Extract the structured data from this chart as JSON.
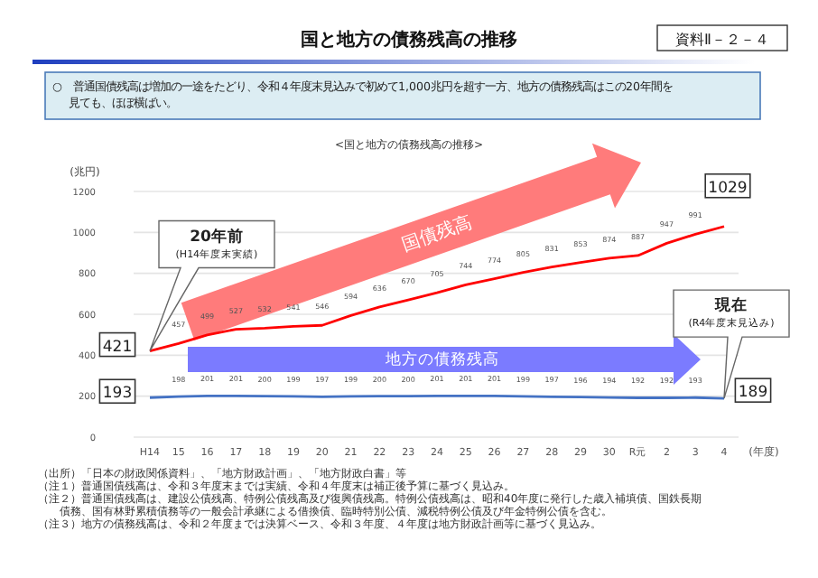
{
  "chart_data": {
    "type": "line",
    "title": "国と地方の債務残高の推移",
    "subtitle": "<国と地方の債務残高の推移>",
    "ylabel": "(兆円)",
    "xlabel": "(年度)",
    "categories": [
      "H14",
      "15",
      "16",
      "17",
      "18",
      "19",
      "20",
      "21",
      "22",
      "23",
      "24",
      "25",
      "26",
      "27",
      "28",
      "29",
      "30",
      "R元",
      "2",
      "3",
      "4"
    ],
    "series": [
      {
        "name": "国債残高",
        "color": "#ff0000",
        "values": [
          421,
          457,
          499,
          527,
          532,
          541,
          546,
          594,
          636,
          670,
          705,
          744,
          774,
          805,
          831,
          853,
          874,
          887,
          947,
          991,
          1029
        ]
      },
      {
        "name": "地方の債務残高",
        "color": "#4472c4",
        "values": [
          193,
          198,
          201,
          201,
          200,
          199,
          197,
          199,
          200,
          200,
          201,
          201,
          201,
          199,
          197,
          196,
          194,
          192,
          192,
          193,
          189
        ]
      }
    ],
    "ylim": [
      0,
      1200
    ],
    "yticks": [
      0,
      200,
      400,
      600,
      800,
      1000,
      1200
    ],
    "grid": "y",
    "data_labels": true,
    "marker": "none",
    "line_style": "solid",
    "annotations": [
      "資料Ⅱ－２－４",
      "○　普通国債残高は増加の一途をたどり、令和４年度末見込みで初めて1,000兆円を超す一方、地方の債務残高はこの20年間を見ても、ほぼ横ばい。",
      "（出所）「日本の財政関係資料」、「地方財政計画」、「地方財政白書」等",
      "（注１）普通国債残高は、令和３年度末までは実績、令和４年度末は補正後予算に基づく見込み。",
      "（注２）普通国債残高は、建設公債残高、特例公債残高及び復興債残高。特例公債残高は、昭和40年度に発行した歳入補填債、国鉄長期債務、国有林野累積債務等の一般会計承継による借換債、臨時特別公債、減税特例公債及び年金特例公債を含む。",
      "（注３）地方の債務残高は、令和２年度までは決算ベース、令和３年度、４年度は地方財政計画等に基づく見込み。",
      "20年前\n(H14年度末実績)",
      "現在\n(R4年度末見込み)"
    ]
  }
}
